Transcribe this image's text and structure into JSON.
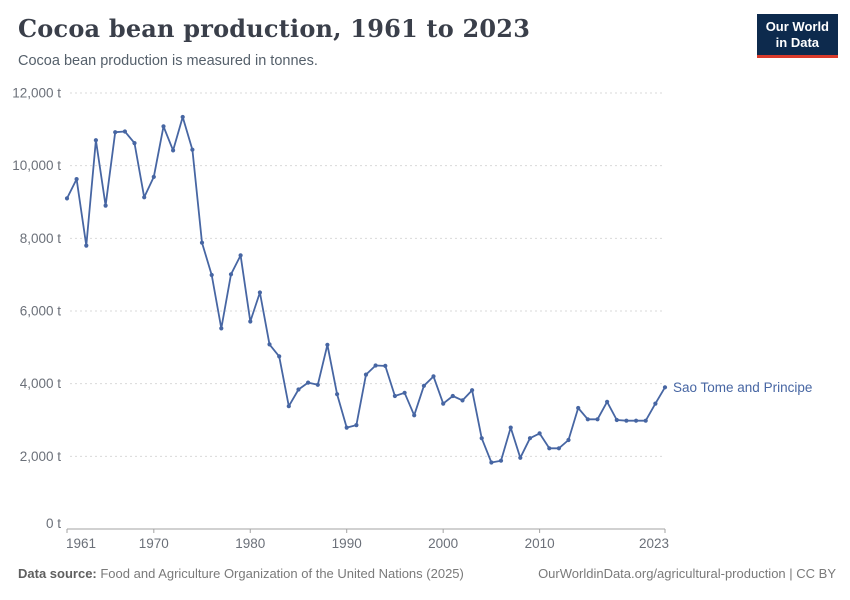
{
  "header": {
    "title": "Cocoa bean production, 1961 to 2023",
    "subtitle": "Cocoa bean production is measured in tonnes.",
    "logo_line1": "Our World",
    "logo_line2": "in Data"
  },
  "chart_data": {
    "type": "line",
    "title": "Cocoa bean production, 1961 to 2023",
    "unit": "tonnes",
    "xlim": [
      1961,
      2023
    ],
    "ylim": [
      0,
      12000
    ],
    "grid": "horizontal-dashed",
    "legend_position": "end-of-line-label",
    "x": [
      1961,
      1962,
      1963,
      1964,
      1965,
      1966,
      1967,
      1968,
      1969,
      1970,
      1971,
      1972,
      1973,
      1974,
      1975,
      1976,
      1977,
      1978,
      1979,
      1980,
      1981,
      1982,
      1983,
      1984,
      1985,
      1986,
      1987,
      1988,
      1989,
      1990,
      1991,
      1992,
      1993,
      1994,
      1995,
      1996,
      1997,
      1998,
      1999,
      2000,
      2001,
      2002,
      2003,
      2004,
      2005,
      2006,
      2007,
      2008,
      2009,
      2010,
      2011,
      2012,
      2013,
      2014,
      2015,
      2016,
      2017,
      2018,
      2019,
      2020,
      2021,
      2022,
      2023
    ],
    "series": [
      {
        "name": "Sao Tome and Principe",
        "color": "#4766A3",
        "values": [
          9100,
          9630,
          7800,
          10700,
          8900,
          10920,
          10940,
          10620,
          9130,
          9690,
          11080,
          10420,
          11340,
          10440,
          7880,
          6990,
          5520,
          7010,
          7530,
          5710,
          6510,
          5080,
          4750,
          3380,
          3840,
          4030,
          3970,
          5070,
          3710,
          2790,
          2860,
          4250,
          4500,
          4490,
          3660,
          3750,
          3130,
          3940,
          4200,
          3450,
          3660,
          3540,
          3820,
          2500,
          1830,
          1880,
          2790,
          1960,
          2500,
          2630,
          2220,
          2220,
          2450,
          3330,
          3020,
          3020,
          3500,
          3000,
          2980,
          2980,
          2980,
          3450,
          3900
        ]
      }
    ],
    "y_ticks": [
      {
        "value": 0,
        "label": "0 t"
      },
      {
        "value": 2000,
        "label": "2,000 t"
      },
      {
        "value": 4000,
        "label": "4,000 t"
      },
      {
        "value": 6000,
        "label": "6,000 t"
      },
      {
        "value": 8000,
        "label": "8,000 t"
      },
      {
        "value": 10000,
        "label": "10,000 t"
      },
      {
        "value": 12000,
        "label": "12,000 t"
      }
    ],
    "x_ticks": [
      {
        "value": 1961,
        "label": "1961"
      },
      {
        "value": 1970,
        "label": "1970"
      },
      {
        "value": 1980,
        "label": "1980"
      },
      {
        "value": 1990,
        "label": "1990"
      },
      {
        "value": 2000,
        "label": "2000"
      },
      {
        "value": 2010,
        "label": "2010"
      },
      {
        "value": 2023,
        "label": "2023"
      }
    ]
  },
  "footer": {
    "source_label": "Data source:",
    "source_text": " Food and Agriculture Organization of the United Nations (2025)",
    "rights": "OurWorldinData.org/agricultural-production | CC BY"
  },
  "colors": {
    "series_line": "#4766A3",
    "gridline": "#dadada",
    "axis": "#a3a3a3",
    "tick_text": "#6b7079",
    "title_text": "#3a3f4a",
    "logo_bg": "#0d2a4d",
    "logo_accent": "#d93a2b"
  }
}
